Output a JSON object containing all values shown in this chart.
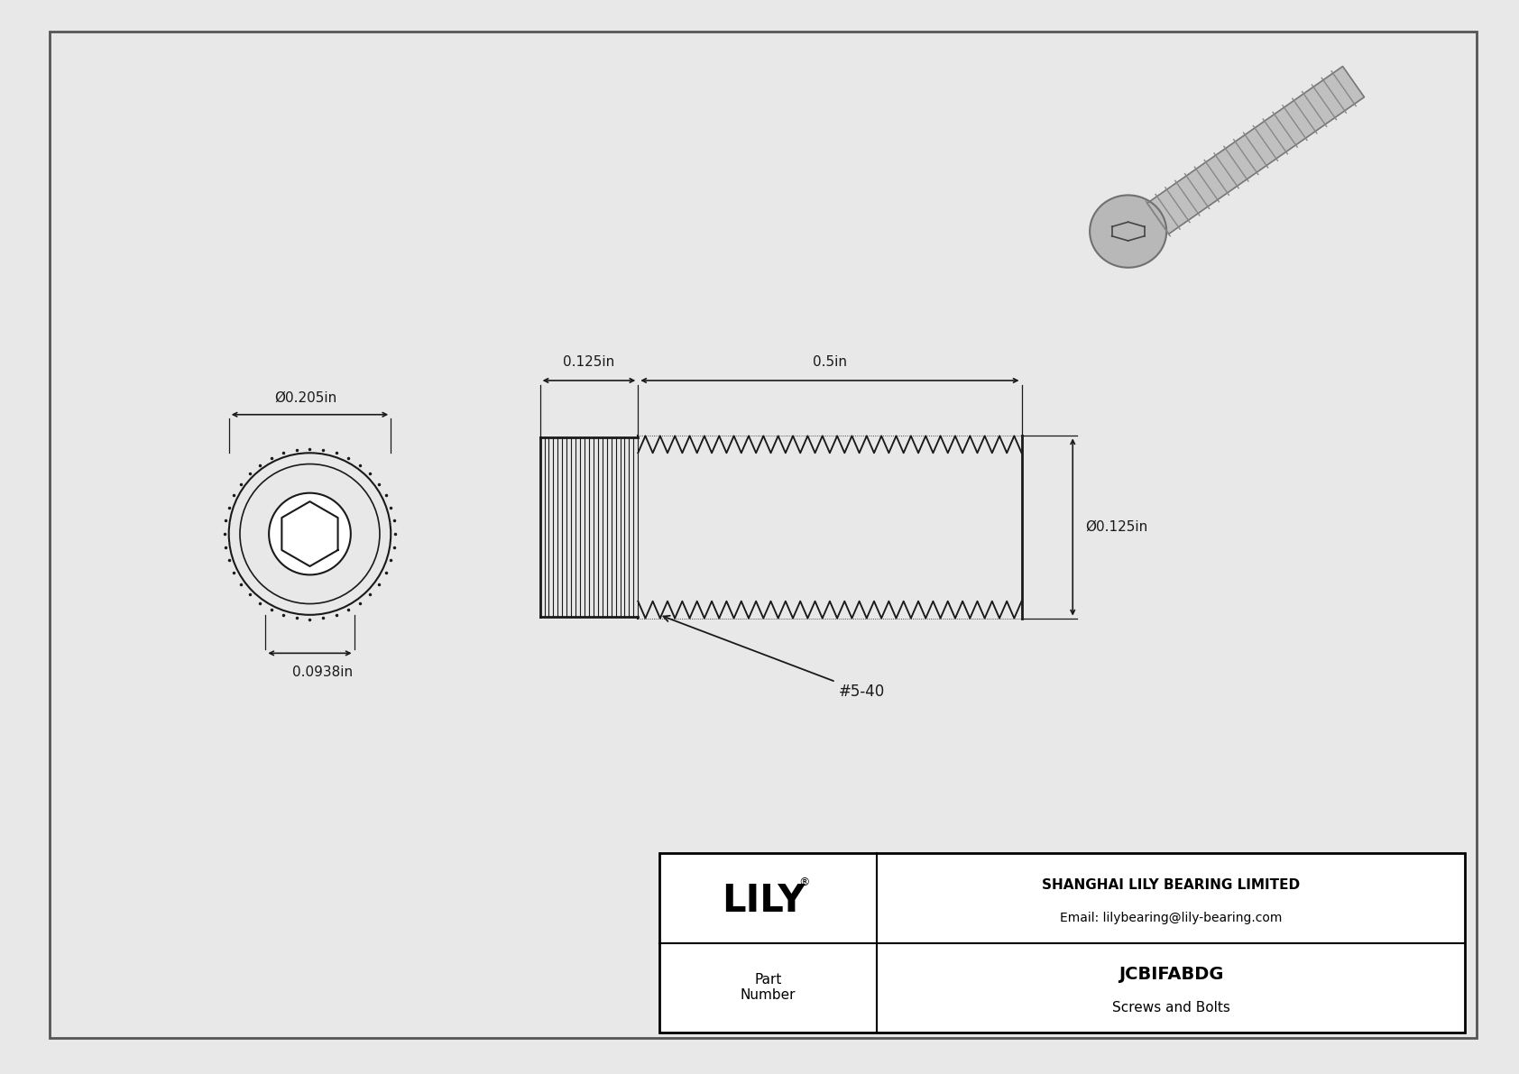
{
  "bg_color": "#e8e8e8",
  "drawing_bg": "#ffffff",
  "border_color": "#555555",
  "line_color": "#1a1a1a",
  "dim_color": "#1a1a1a",
  "table_border": "#000000",
  "title": "JCBIFABDG",
  "subtitle": "Screws and Bolts",
  "company": "SHANGHAI LILY BEARING LIMITED",
  "email": "Email: lilybearing@lily-bearing.com",
  "part_label": "Part\nNumber",
  "logo_text": "LILY",
  "dims": {
    "diameter_label": "Ø0.205in",
    "head_width_label": "0.0938in",
    "head_len_label": "0.125in",
    "shaft_len_label": "0.5in",
    "shaft_dia_label": "Ø0.125in",
    "thread_label": "#5-40"
  }
}
